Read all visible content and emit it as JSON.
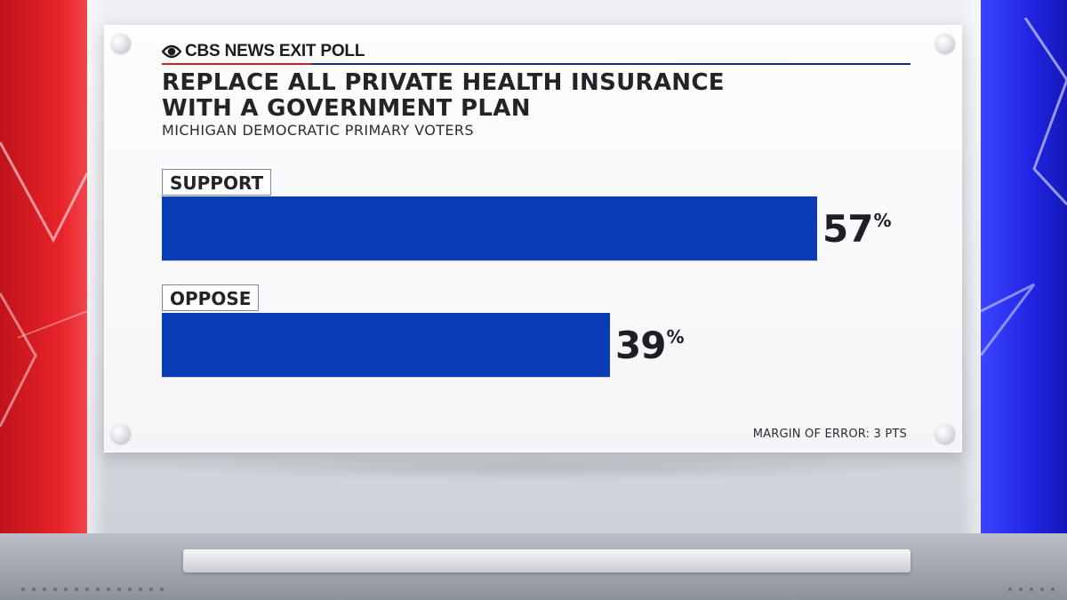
{
  "brand": {
    "name": "CBS NEWS EXIT POLL",
    "logo_icon": "cbs-eye-icon",
    "rule_colors": [
      "#d81f26",
      "#1b2a8c"
    ]
  },
  "chart_data": {
    "type": "bar",
    "orientation": "horizontal",
    "title": "REPLACE ALL PRIVATE HEALTH INSURANCE\nWITH A GOVERNMENT PLAN",
    "subtitle": "MICHIGAN DEMOCRATIC PRIMARY VOTERS",
    "categories": [
      "SUPPORT",
      "OPPOSE"
    ],
    "values": [
      57,
      39
    ],
    "value_labels": [
      "57",
      "39"
    ],
    "unit": "%",
    "xlim": [
      0,
      100
    ],
    "bar_color": "#0a3db5",
    "note": "MARGIN OF ERROR: 3 PTS"
  },
  "theme": {
    "left_panel_color": "#e8232a",
    "right_panel_color": "#1f24e0"
  }
}
